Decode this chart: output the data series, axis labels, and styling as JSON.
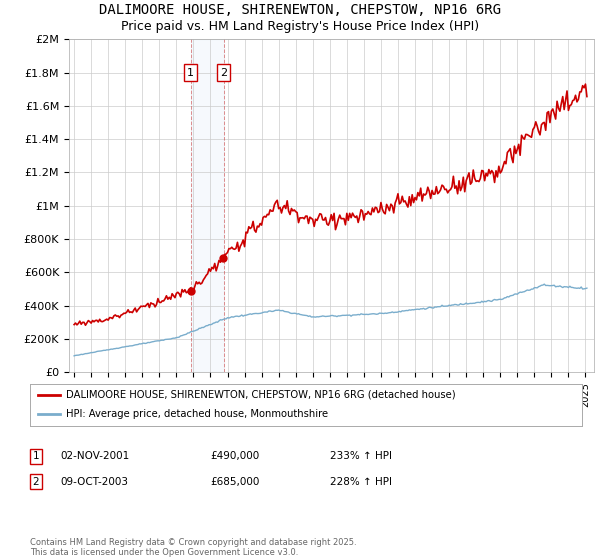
{
  "title": "DALIMOORE HOUSE, SHIRENEWTON, CHEPSTOW, NP16 6RG",
  "subtitle": "Price paid vs. HM Land Registry's House Price Index (HPI)",
  "ylabel_ticks": [
    "£0",
    "£200K",
    "£400K",
    "£600K",
    "£800K",
    "£1M",
    "£1.2M",
    "£1.4M",
    "£1.6M",
    "£1.8M",
    "£2M"
  ],
  "ytick_values": [
    0,
    200000,
    400000,
    600000,
    800000,
    1000000,
    1200000,
    1400000,
    1600000,
    1800000,
    2000000
  ],
  "ylim": [
    0,
    2000000
  ],
  "sale1_date": 2001.84,
  "sale1_price": 490000,
  "sale2_date": 2003.77,
  "sale2_price": 685000,
  "legend_house": "DALIMOORE HOUSE, SHIRENEWTON, CHEPSTOW, NP16 6RG (detached house)",
  "legend_hpi": "HPI: Average price, detached house, Monmouthshire",
  "footer": "Contains HM Land Registry data © Crown copyright and database right 2025.\nThis data is licensed under the Open Government Licence v3.0.",
  "house_color": "#cc0000",
  "hpi_color": "#7aadcc",
  "grid_color": "#cccccc",
  "background_color": "#ffffff",
  "title_fontsize": 10,
  "subtitle_fontsize": 9
}
